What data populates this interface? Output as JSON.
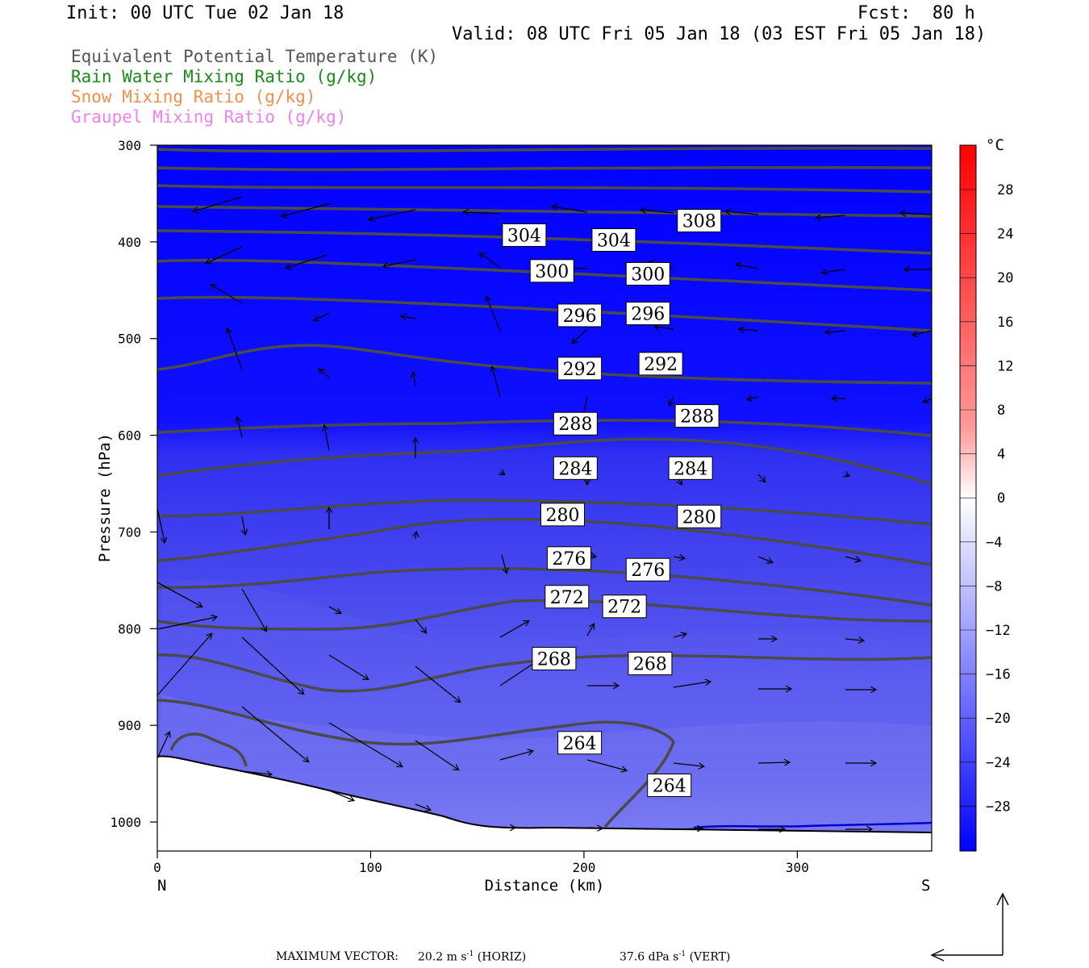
{
  "header": {
    "init": "Init: 00 UTC Tue 02 Jan 18",
    "fcst": "Fcst:  80 h",
    "valid": "Valid: 08 UTC Fri 05 Jan 18 (03 EST Fri 05 Jan 18)"
  },
  "fields": [
    {
      "label": "Equivalent Potential Temperature (K)",
      "color": "#555555"
    },
    {
      "label": "Rain Water Mixing Ratio (g/kg)",
      "color": "#1a8a1a"
    },
    {
      "label": "Snow Mixing Ratio (g/kg)",
      "color": "#f0904a"
    },
    {
      "label": "Graupel Mixing Ratio (g/kg)",
      "color": "#ee82ee"
    }
  ],
  "chart_data": {
    "type": "contour",
    "xlabel": "Distance (km)",
    "ylabel": "Pressure (hPa)",
    "xlim": [
      0,
      363
    ],
    "ylim": [
      1030,
      300
    ],
    "x_ticks": [
      0,
      100,
      200,
      300
    ],
    "y_ticks": [
      300,
      400,
      500,
      600,
      700,
      800,
      900,
      1000
    ],
    "x_end_labels": {
      "left": "N",
      "right": "S"
    },
    "colorbar": {
      "unit": "°C",
      "ticks": [
        28,
        24,
        20,
        16,
        12,
        8,
        4,
        0,
        -4,
        -8,
        -12,
        -16,
        -20,
        -24,
        -28
      ]
    },
    "theta_e_contour_labels": [
      {
        "value": "308",
        "x": 254,
        "p": 378
      },
      {
        "value": "304",
        "x": 172,
        "p": 393
      },
      {
        "value": "304",
        "x": 214,
        "p": 398
      },
      {
        "value": "300",
        "x": 185,
        "p": 430
      },
      {
        "value": "300",
        "x": 230,
        "p": 433
      },
      {
        "value": "296",
        "x": 198,
        "p": 476
      },
      {
        "value": "296",
        "x": 230,
        "p": 474
      },
      {
        "value": "292",
        "x": 198,
        "p": 531
      },
      {
        "value": "292",
        "x": 236,
        "p": 526
      },
      {
        "value": "288",
        "x": 196,
        "p": 588
      },
      {
        "value": "288",
        "x": 253,
        "p": 580
      },
      {
        "value": "284",
        "x": 196,
        "p": 634
      },
      {
        "value": "284",
        "x": 250,
        "p": 634
      },
      {
        "value": "280",
        "x": 190,
        "p": 682
      },
      {
        "value": "280",
        "x": 254,
        "p": 684
      },
      {
        "value": "276",
        "x": 193,
        "p": 727
      },
      {
        "value": "276",
        "x": 230,
        "p": 739
      },
      {
        "value": "272",
        "x": 192,
        "p": 767
      },
      {
        "value": "272",
        "x": 219,
        "p": 777
      },
      {
        "value": "268",
        "x": 186,
        "p": 831
      },
      {
        "value": "268",
        "x": 231,
        "p": 836
      },
      {
        "value": "264",
        "x": 198,
        "p": 918
      },
      {
        "value": "264",
        "x": 240,
        "p": 962
      }
    ]
  },
  "footer": {
    "max_label": "MAXIMUM VECTOR:",
    "horiz_value": "20.2 m s",
    "horiz_exp": "-1",
    "horiz_tag": "(HORIZ)",
    "vert_value": "37.6 dPa s",
    "vert_exp": "-1",
    "vert_tag": "(VERT)"
  }
}
